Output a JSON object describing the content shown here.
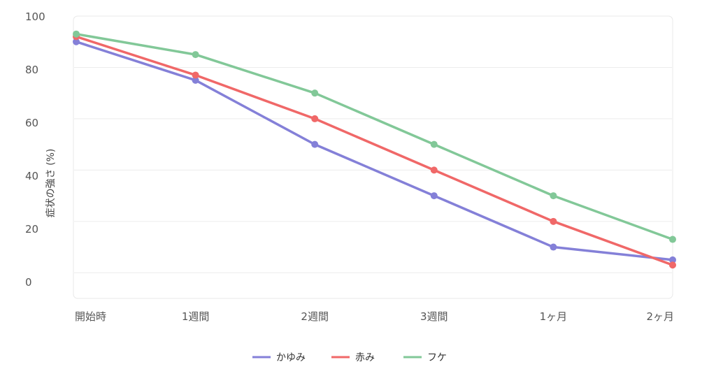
{
  "chart_data": {
    "type": "line",
    "ylabel": "症状の強さ (%)",
    "xlabel": "",
    "categories": [
      "開始時",
      "1週間",
      "2週間",
      "3週間",
      "1ヶ月",
      "2ヶ月"
    ],
    "ylim": [
      -10,
      100
    ],
    "yticks": [
      "0",
      "20",
      "40",
      "60",
      "80",
      "100"
    ],
    "grid": true,
    "legend": "bottom",
    "series": [
      {
        "name": "かゆみ",
        "color": "#8480d8",
        "values": [
          90,
          75,
          50,
          30,
          10,
          5
        ]
      },
      {
        "name": "赤み",
        "color": "#f06868",
        "values": [
          92,
          77,
          60,
          40,
          20,
          3
        ]
      },
      {
        "name": "フケ",
        "color": "#82c898",
        "values": [
          93,
          85,
          70,
          50,
          30,
          13
        ]
      }
    ]
  }
}
